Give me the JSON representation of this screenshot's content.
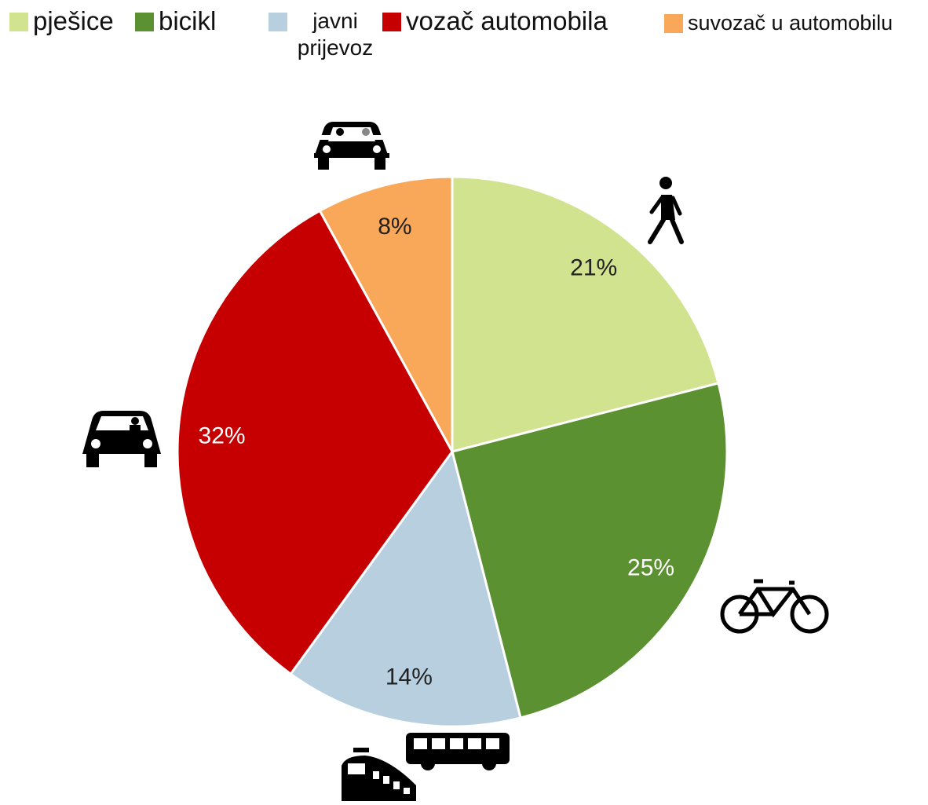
{
  "chart_data": {
    "type": "pie",
    "categories": [
      "pješice",
      "bicikl",
      "javni prijevoz",
      "vozač automobila",
      "suvozač u automobilu"
    ],
    "values": [
      21,
      25,
      14,
      32,
      8
    ],
    "value_labels": [
      "21%",
      "25%",
      "14%",
      "32%",
      "8%"
    ],
    "colors": [
      "#d1e38f",
      "#5b9130",
      "#b7cfdf",
      "#c60000",
      "#f9a85a"
    ]
  }
}
